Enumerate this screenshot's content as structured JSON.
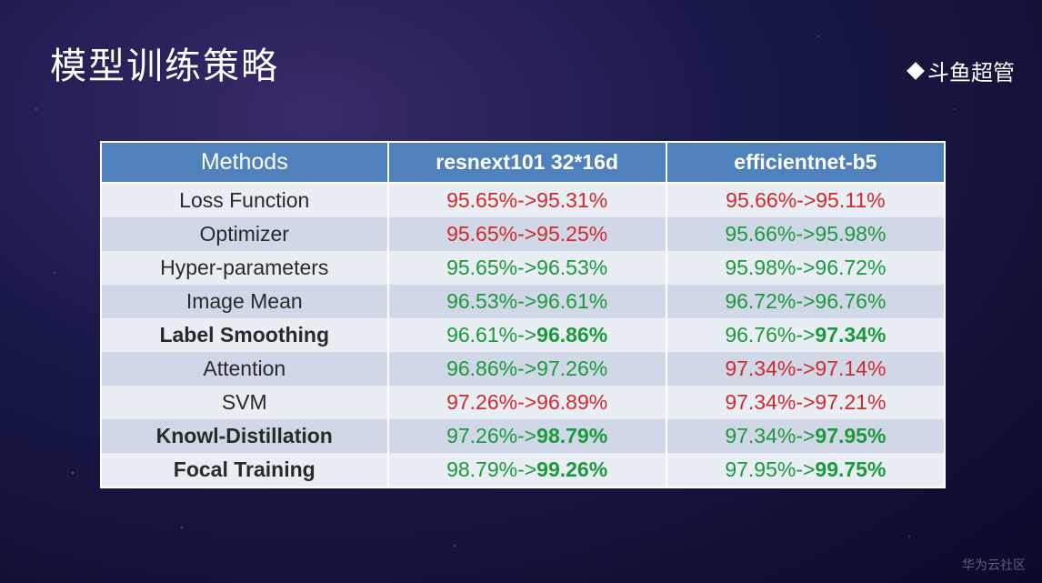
{
  "title": "模型训练策略",
  "brand": "斗鱼超管",
  "watermark": "华为云社区",
  "table": {
    "columns": [
      "Methods",
      "resnext101 32*16d",
      "efficientnet-b5"
    ],
    "column_widths": [
      "34%",
      "33%",
      "33%"
    ],
    "header_bg": "#4f81bd",
    "row_bg_odd": "#e9edf4",
    "row_bg_even": "#d0d8e8",
    "border_color": "#ffffff",
    "font_size": 23,
    "colors": {
      "red": "#d02a2a",
      "green": "#1a9a3a",
      "text": "#2a2a2a"
    },
    "rows": [
      {
        "method": "Loss Function",
        "method_bold": false,
        "c1": {
          "from": "95.65%",
          "to": "95.31%",
          "color": "red",
          "bold_to": false
        },
        "c2": {
          "from": "95.66%",
          "to": "95.11%",
          "color": "red",
          "bold_to": false
        }
      },
      {
        "method": "Optimizer",
        "method_bold": false,
        "c1": {
          "from": "95.65%",
          "to": "95.25%",
          "color": "red",
          "bold_to": false
        },
        "c2": {
          "from": "95.66%",
          "to": "95.98%",
          "color": "green",
          "bold_to": false
        }
      },
      {
        "method": "Hyper-parameters",
        "method_bold": false,
        "c1": {
          "from": "95.65%",
          "to": "96.53%",
          "color": "green",
          "bold_to": false
        },
        "c2": {
          "from": "95.98%",
          "to": "96.72%",
          "color": "green",
          "bold_to": false
        }
      },
      {
        "method": "Image Mean",
        "method_bold": false,
        "c1": {
          "from": "96.53%",
          "to": "96.61%",
          "color": "green",
          "bold_to": false
        },
        "c2": {
          "from": "96.72%",
          "to": "96.76%",
          "color": "green",
          "bold_to": false
        }
      },
      {
        "method": "Label Smoothing",
        "method_bold": true,
        "c1": {
          "from": "96.61%",
          "to": "96.86%",
          "color": "green",
          "bold_to": true
        },
        "c2": {
          "from": "96.76%",
          "to": "97.34%",
          "color": "green",
          "bold_to": true
        }
      },
      {
        "method": "Attention",
        "method_bold": false,
        "c1": {
          "from": "96.86%",
          "to": "97.26%",
          "color": "green",
          "bold_to": false
        },
        "c2": {
          "from": "97.34%",
          "to": "97.14%",
          "color": "red",
          "bold_to": false
        }
      },
      {
        "method": "SVM",
        "method_bold": false,
        "c1": {
          "from": "97.26%",
          "to": "96.89%",
          "color": "red",
          "bold_to": false
        },
        "c2": {
          "from": "97.34%",
          "to": "97.21%",
          "color": "red",
          "bold_to": false
        }
      },
      {
        "method": "Knowl-Distillation",
        "method_bold": true,
        "c1": {
          "from": "97.26%",
          "to": "98.79%",
          "color": "green",
          "bold_to": true
        },
        "c2": {
          "from": "97.34%",
          "to": "97.95%",
          "color": "green",
          "bold_to": true
        }
      },
      {
        "method": "Focal Training",
        "method_bold": true,
        "c1": {
          "from": "98.79%",
          "to": "99.26%",
          "color": "green",
          "bold_to": true
        },
        "c2": {
          "from": "97.95%",
          "to": "99.75%",
          "color": "green",
          "bold_to": true
        }
      }
    ]
  }
}
